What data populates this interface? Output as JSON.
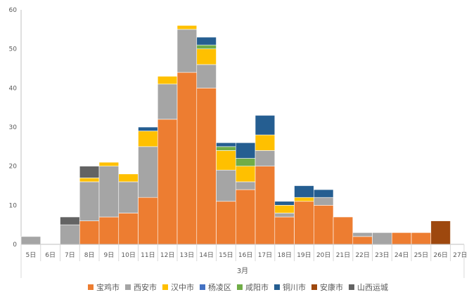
{
  "chart_data": {
    "type": "bar",
    "stacked": true,
    "categories": [
      "5日",
      "6日",
      "7日",
      "8日",
      "9日",
      "10日",
      "11日",
      "12日",
      "13日",
      "14日",
      "15日",
      "16日",
      "17日",
      "18日",
      "19日",
      "20日",
      "21日",
      "22日",
      "23日",
      "24日",
      "25日",
      "26日",
      "27日"
    ],
    "group_label": "3月",
    "ylim": [
      0,
      60
    ],
    "yticks": [
      "0",
      "10",
      "20",
      "30",
      "40",
      "50",
      "60"
    ],
    "grid": false,
    "legend_position": "bottom",
    "series": [
      {
        "name": "宝鸡市",
        "color": "#ED7D31",
        "values": [
          0,
          0,
          0,
          6,
          7,
          8,
          12,
          32,
          44,
          40,
          11,
          14,
          20,
          7,
          11,
          10,
          7,
          2,
          0,
          3,
          3,
          0,
          0
        ]
      },
      {
        "name": "西安市",
        "color": "#A5A5A5",
        "values": [
          2,
          0,
          5,
          10,
          13,
          8,
          13,
          9,
          11,
          6,
          8,
          2,
          4,
          1,
          0,
          2,
          0,
          1,
          3,
          0,
          0,
          0,
          0
        ]
      },
      {
        "name": "汉中市",
        "color": "#FFC000",
        "values": [
          0,
          0,
          0,
          1,
          1,
          2,
          4,
          2,
          1,
          4,
          5,
          4,
          4,
          2,
          1,
          0,
          0,
          0,
          0,
          0,
          0,
          0,
          0
        ]
      },
      {
        "name": "杨凌区",
        "color": "#4472C4",
        "values": [
          0,
          0,
          0,
          0,
          0,
          0,
          0,
          0,
          0,
          0,
          0,
          0,
          0,
          0,
          0,
          0,
          0,
          0,
          0,
          0,
          0,
          0,
          0
        ]
      },
      {
        "name": "咸阳市",
        "color": "#70AD47",
        "values": [
          0,
          0,
          0,
          0,
          0,
          0,
          0,
          0,
          0,
          1,
          1,
          2,
          0,
          0,
          0,
          0,
          0,
          0,
          0,
          0,
          0,
          0,
          0
        ]
      },
      {
        "name": "铜川市",
        "color": "#255E91",
        "values": [
          0,
          0,
          0,
          0,
          0,
          0,
          1,
          0,
          0,
          2,
          1,
          4,
          5,
          1,
          3,
          2,
          0,
          0,
          0,
          0,
          0,
          0,
          0
        ]
      },
      {
        "name": "安康市",
        "color": "#9E480E",
        "values": [
          0,
          0,
          0,
          0,
          0,
          0,
          0,
          0,
          0,
          0,
          0,
          0,
          0,
          0,
          0,
          0,
          0,
          0,
          0,
          0,
          0,
          6,
          0
        ]
      },
      {
        "name": "山西运城",
        "color": "#636363",
        "values": [
          0,
          0,
          2,
          3,
          0,
          0,
          0,
          0,
          0,
          0,
          0,
          0,
          0,
          0,
          0,
          0,
          0,
          0,
          0,
          0,
          0,
          0,
          0
        ]
      }
    ]
  }
}
